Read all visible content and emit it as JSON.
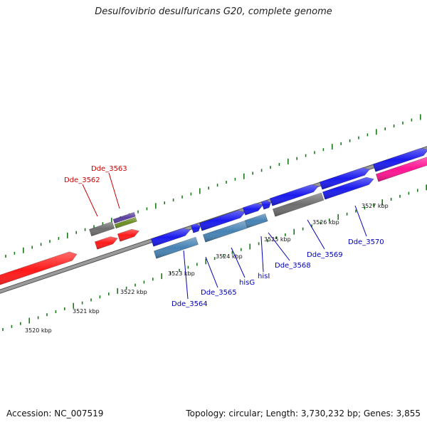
{
  "title": "Desulfovibrio desulfuricans G20, complete genome",
  "footer": {
    "accession": "Accession: NC_007519",
    "stats": "Topology: circular; Length: 3,730,232 bp; Genes: 3,855"
  },
  "colors": {
    "backbone": "#8c8c8c",
    "ticks": "#1a7a1a",
    "red_gene": "#ff1a1a",
    "blue_gene": "#1a1aee",
    "steel_gene": "#4682b4",
    "gray_gene": "#6e6e6e",
    "purple_gene": "#5b3fa0",
    "olive_gene": "#6b8e23",
    "magenta_gene": "#ff1493",
    "label_red": "#cc0000",
    "label_blue": "#0000bb"
  },
  "kbp_labels": [
    "3520 kbp",
    "3521 kbp",
    "3522 kbp",
    "3523 kbp",
    "3524 kbp",
    "3525 kbp",
    "3526 kbp",
    "3527 kbp"
  ],
  "gene_labels": {
    "dde_3562": "Dde_3562",
    "dde_3563": "Dde_3563",
    "dde_3564": "Dde_3564",
    "dde_3565": "Dde_3565",
    "hisG": "hisG",
    "hisI": "hisI",
    "dde_3568": "Dde_3568",
    "dde_3569": "Dde_3569",
    "dde_3570": "Dde_3570"
  }
}
